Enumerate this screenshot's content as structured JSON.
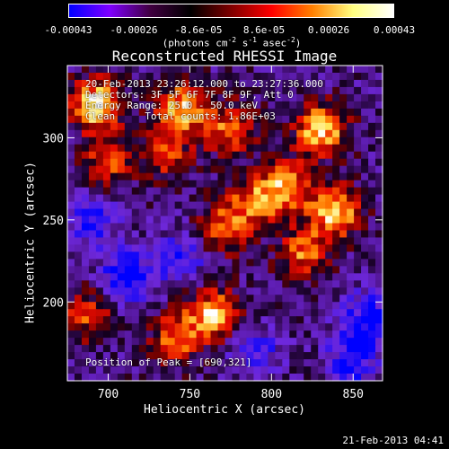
{
  "colorbar": {
    "ticks": [
      "-0.00043",
      "-0.00026",
      "-8.6e-05",
      "8.6e-05",
      "0.00026",
      "0.00043"
    ],
    "unit_parts": [
      "(photons cm",
      "-2",
      " s",
      "-1",
      " asec",
      "-2",
      ")"
    ],
    "colors": [
      "#0000ff",
      "#7f00ff",
      "#400040",
      "#000000",
      "#7f0000",
      "#ff0000",
      "#ff8000",
      "#ffff80",
      "#ffffff"
    ]
  },
  "title": "Reconstructed RHESSI Image",
  "annotations": {
    "line1": "20-Feb-2013 23:26:12.000 to 23:27:36.000",
    "line2": "Detectors: 3F 5F 6F 7F 8F 9F, Att 0",
    "line3": "Energy Range: 25.0 - 50.0 keV",
    "line4": "Clean     Total counts: 1.86E+03",
    "peak": "Position of Peak = [690,321]"
  },
  "timestamp": "21-Feb-2013 04:41",
  "chart_data": {
    "type": "heatmap",
    "title": "Reconstructed RHESSI Image",
    "xlabel": "Heliocentric X (arcsec)",
    "ylabel": "Heliocentric Y (arcsec)",
    "xlim": [
      675,
      868
    ],
    "ylim": [
      152,
      344
    ],
    "x_ticks": [
      700,
      750,
      800,
      850
    ],
    "y_ticks": [
      200,
      250,
      300
    ],
    "value_range": [
      -0.00043,
      0.00043
    ],
    "peak": [
      690,
      321
    ],
    "hot_regions": [
      {
        "x": 692,
        "y": 320,
        "value": 0.00043
      },
      {
        "x": 745,
        "y": 318,
        "value": 0.00035
      },
      {
        "x": 775,
        "y": 305,
        "value": 0.0003
      },
      {
        "x": 830,
        "y": 305,
        "value": 0.0004
      },
      {
        "x": 810,
        "y": 270,
        "value": 0.00032
      },
      {
        "x": 840,
        "y": 255,
        "value": 0.00038
      },
      {
        "x": 790,
        "y": 262,
        "value": 0.00028
      },
      {
        "x": 700,
        "y": 285,
        "value": 0.00026
      },
      {
        "x": 770,
        "y": 245,
        "value": 0.00026
      },
      {
        "x": 820,
        "y": 230,
        "value": 0.00028
      },
      {
        "x": 765,
        "y": 193,
        "value": 0.00036
      },
      {
        "x": 742,
        "y": 178,
        "value": 0.00028
      },
      {
        "x": 688,
        "y": 192,
        "value": 0.00024
      },
      {
        "x": 735,
        "y": 290,
        "value": 0.00022
      }
    ],
    "cold_regions": [
      {
        "x": 712,
        "y": 215,
        "value": -0.0003
      },
      {
        "x": 860,
        "y": 190,
        "value": -0.00026
      },
      {
        "x": 690,
        "y": 250,
        "value": -0.00022
      },
      {
        "x": 745,
        "y": 228,
        "value": -0.0002
      },
      {
        "x": 850,
        "y": 165,
        "value": -0.00024
      },
      {
        "x": 790,
        "y": 170,
        "value": -0.00018
      }
    ]
  }
}
